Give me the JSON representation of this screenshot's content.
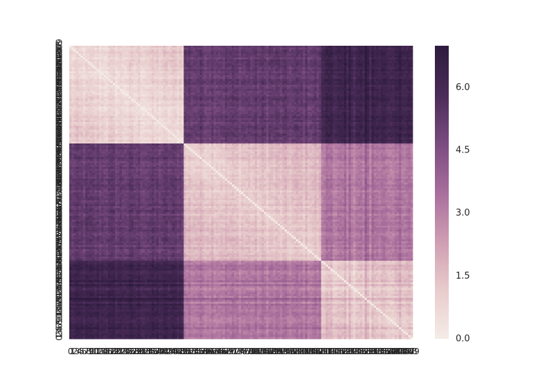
{
  "chart_data": {
    "type": "heatmap",
    "title": "",
    "xlabel": "",
    "ylabel": "",
    "n_rows": 150,
    "n_cols": 150,
    "value_range": [
      0.0,
      7.0
    ],
    "matrix_kind": "symmetric pairwise distance matrix with zero diagonal",
    "block_boundaries": [
      0,
      50,
      110,
      150
    ],
    "block_means": [
      [
        0.6,
        5.2,
        6.2
      ],
      [
        5.2,
        1.1,
        3.2
      ],
      [
        6.2,
        3.2,
        1.0
      ]
    ],
    "x_tick_labels_visible": "0 3 4 5 6 7 8 ... 149 (overlapping, unreadable)",
    "y_tick_labels_visible": "0 ... 149 (overlapping, unreadable)",
    "colorbar": {
      "ticks": [
        0.0,
        1.5,
        3.0,
        4.5,
        6.0
      ],
      "tick_labels": [
        "0.0",
        "1.5",
        "3.0",
        "4.5",
        "6.0"
      ],
      "range": [
        0.0,
        7.0
      ]
    },
    "colormap": {
      "name": "cubehelix-purple",
      "stops": [
        "#f5ece7",
        "#e8cccc",
        "#cf9db2",
        "#a86e9c",
        "#7a4b80",
        "#4a2c58",
        "#2d1b3d"
      ]
    },
    "grid": false,
    "legend": "colorbar-right"
  }
}
